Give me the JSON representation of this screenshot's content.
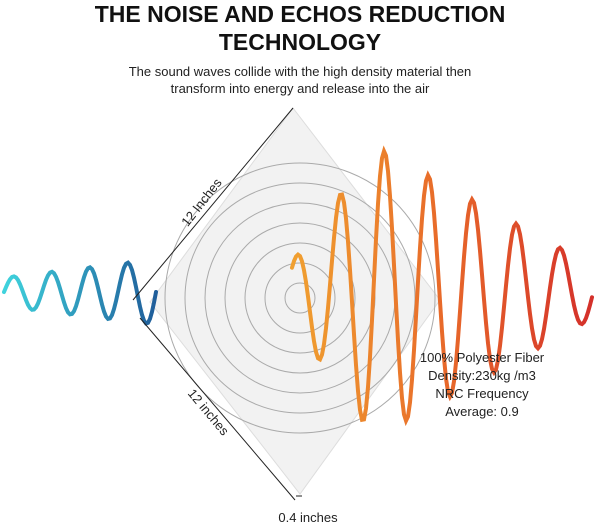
{
  "header": {
    "title_lines": [
      "THE NOISE AND ECHOS REDUCTION",
      "TECHNOLOGY"
    ],
    "subtitle_lines": [
      "The sound waves collide with the high density material then",
      "transform into energy and release into the air"
    ]
  },
  "dimensions": {
    "top_edge": "12 Inches",
    "bottom_edge": "12 inches",
    "thickness": "0.4 inches"
  },
  "specs": [
    "100% Polyester Fiber",
    "Density:230kg /m3",
    "NRC Frequency",
    "Average: 0.9"
  ]
}
